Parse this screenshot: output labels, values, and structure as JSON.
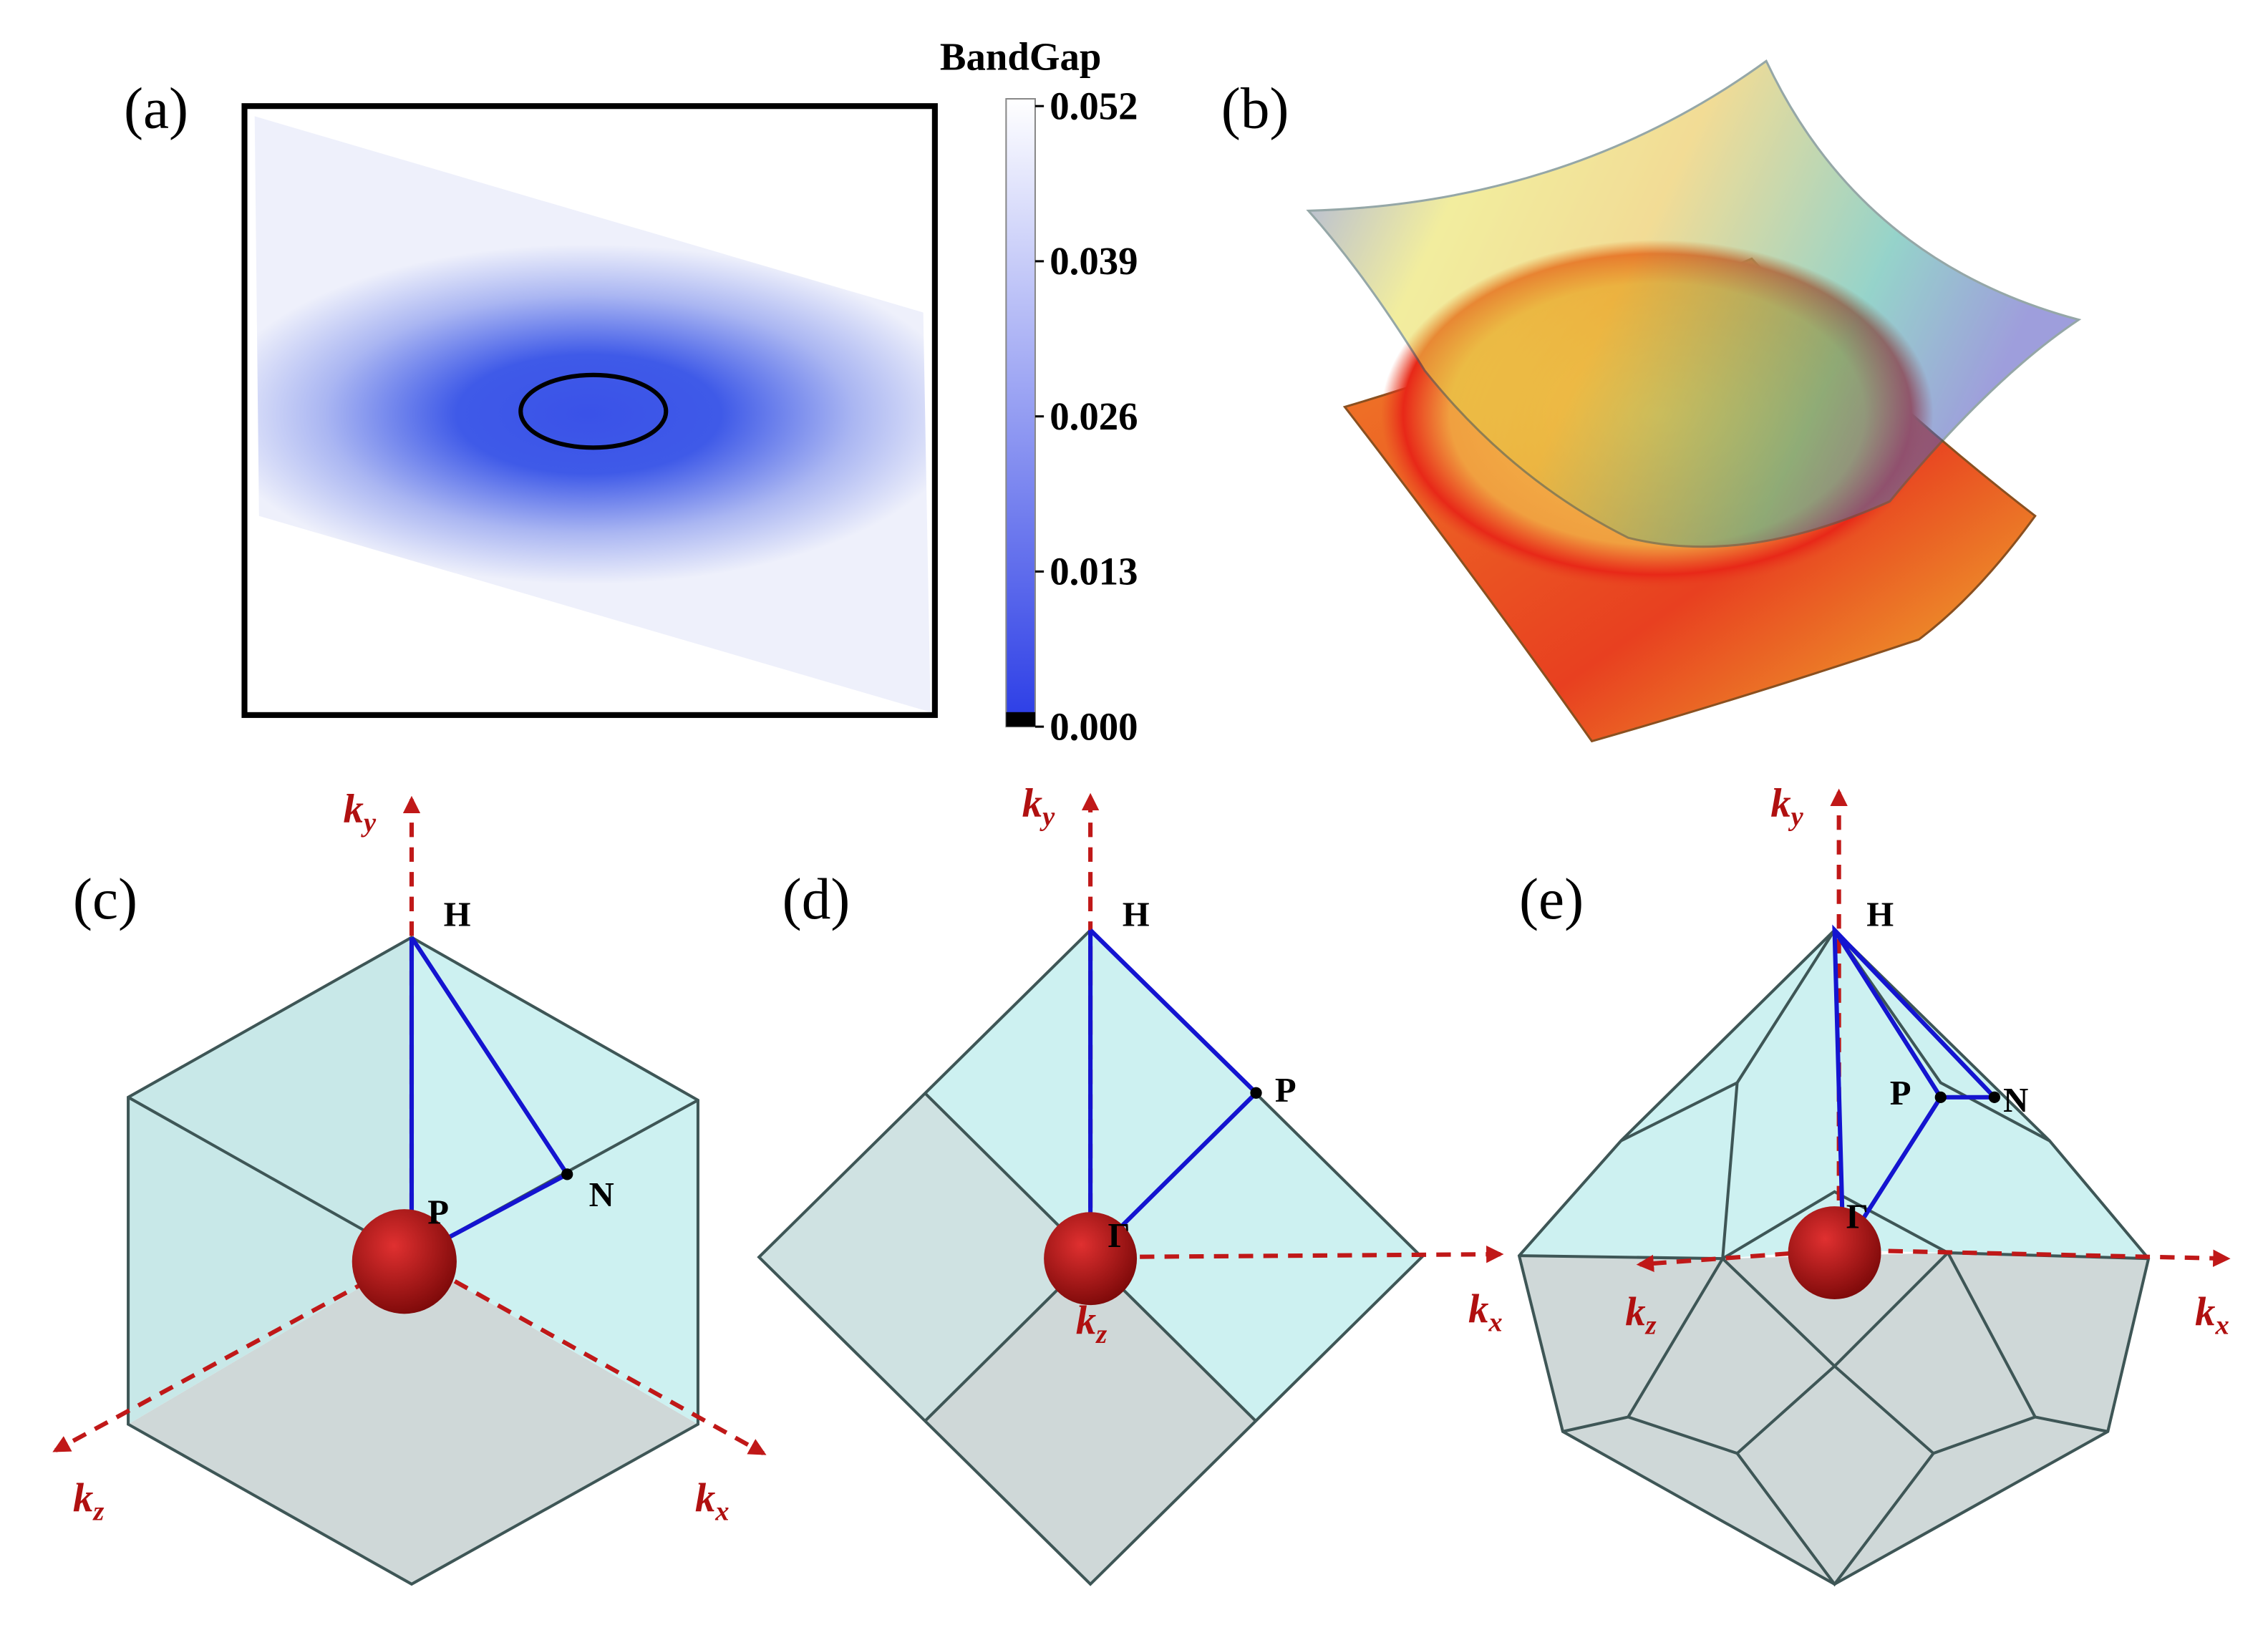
{
  "panels": {
    "a": "(a)",
    "b": "(b)",
    "c": "(c)",
    "d": "(d)",
    "e": "(e)"
  },
  "colorbar": {
    "title": "BandGap",
    "lim": [
      0,
      0.052
    ],
    "ticks": [
      0.052,
      0.039,
      0.026,
      0.013,
      {
        "value": 0,
        "label": "0.000"
      }
    ]
  },
  "points": {
    "H": "H",
    "P": "P",
    "N": "N",
    "G": "Γ"
  },
  "axes": {
    "kx": {
      "base": "k",
      "sub": "x"
    },
    "ky": {
      "base": "k",
      "sub": "y"
    },
    "kz": {
      "base": "k",
      "sub": "z"
    }
  }
}
